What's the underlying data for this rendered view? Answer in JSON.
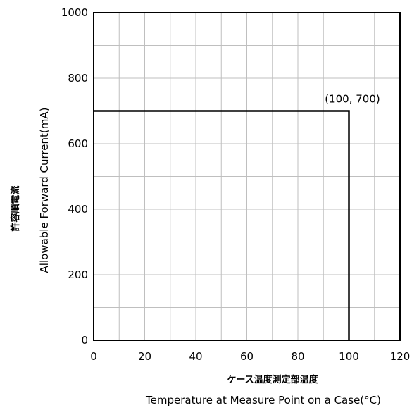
{
  "chart_data": {
    "type": "line",
    "title": "",
    "xlabel_jp": "ケース温度測定部温度",
    "xlabel": "Temperature at Measure Point on a Case(°C)",
    "ylabel_jp": "許容順電流",
    "ylabel": "Allowable Forward Current(mA)",
    "xlim": [
      0,
      120
    ],
    "ylim": [
      0,
      1000
    ],
    "x_major_ticks": [
      0,
      20,
      40,
      60,
      80,
      100,
      120
    ],
    "y_major_ticks": [
      0,
      200,
      400,
      600,
      800,
      1000
    ],
    "x_minor_step": 10,
    "y_minor_step": 100,
    "grid": true,
    "series": [
      {
        "x": [
          0,
          100,
          100
        ],
        "y": [
          700,
          700,
          0
        ]
      }
    ],
    "annotations": [
      {
        "text": "(100, 700)",
        "x": 100,
        "y": 700
      }
    ],
    "colors": {
      "line": "#000000",
      "grid": "#bfbfbf",
      "frame": "#000000"
    }
  }
}
